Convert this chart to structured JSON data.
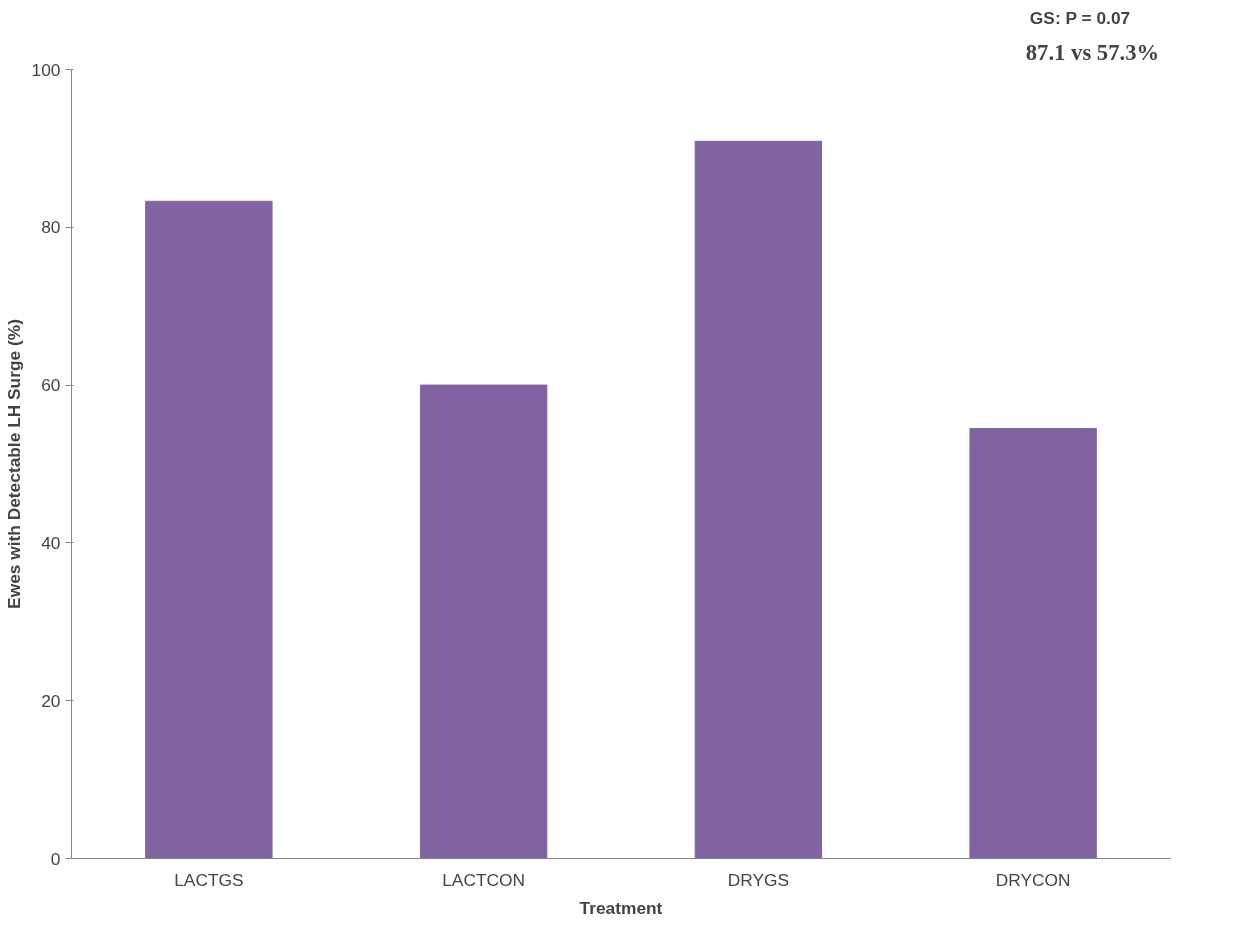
{
  "chart_data": {
    "type": "bar",
    "categories": [
      "LACTGS",
      "LACTCON",
      "DRYGS",
      "DRYCON"
    ],
    "values": [
      83.3,
      60,
      90.9,
      54.5
    ],
    "color": "#8064a2",
    "xlabel": "Treatment",
    "ylabel": "Ewes with Detectable LH Surge (%)",
    "ylim": [
      0,
      100
    ],
    "yticks": [
      0,
      20,
      40,
      60,
      80,
      100
    ],
    "grid": false,
    "annotations": [
      "GS: P = 0.07",
      "87.1  vs  57.3%"
    ]
  }
}
